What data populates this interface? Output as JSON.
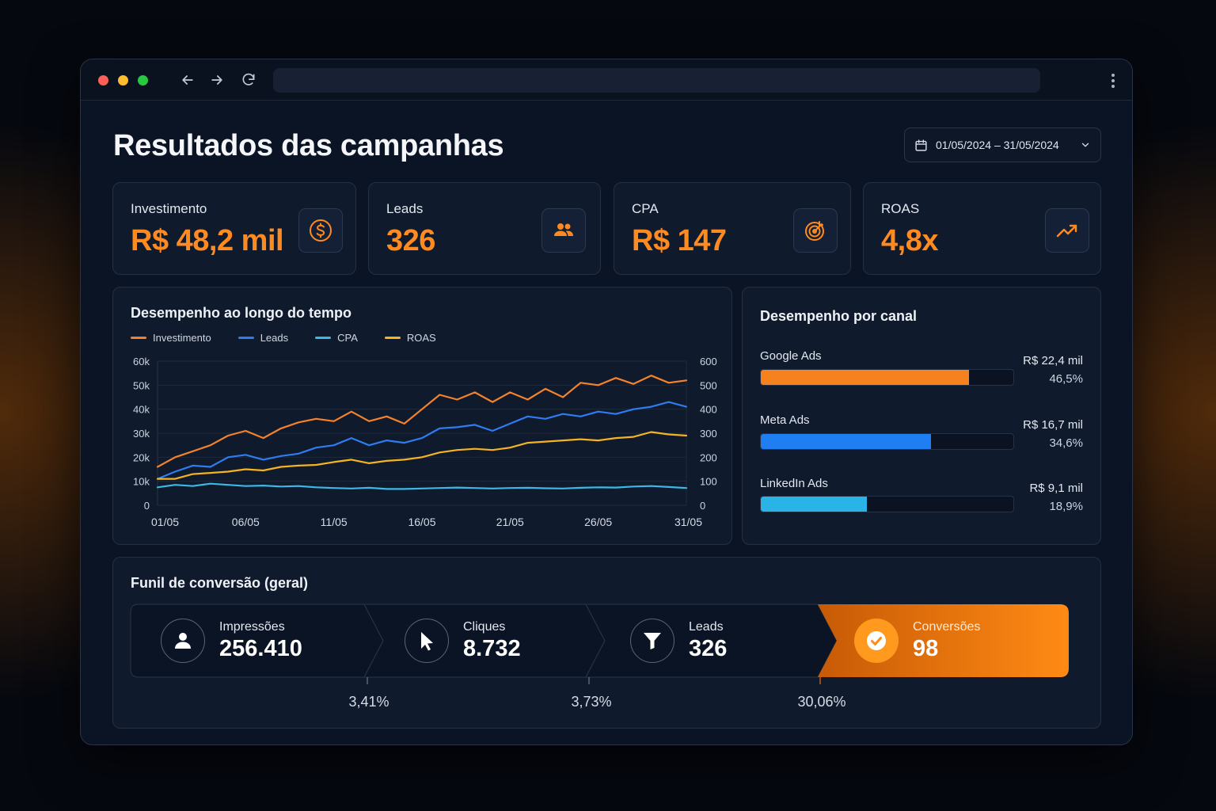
{
  "page": {
    "title": "Resultados das campanhas"
  },
  "date_range": {
    "label": "01/05/2024 – 31/05/2024"
  },
  "kpis": [
    {
      "label": "Investimento",
      "value": "R$ 48,2 mil",
      "icon": "dollar-circle-icon"
    },
    {
      "label": "Leads",
      "value": "326",
      "icon": "users-icon"
    },
    {
      "label": "CPA",
      "value": "R$ 147",
      "icon": "target-icon"
    },
    {
      "label": "ROAS",
      "value": "4,8x",
      "icon": "trending-up-icon"
    }
  ],
  "performance": {
    "title": "Desempenho ao longo do tempo",
    "legend": [
      "Investimento",
      "Leads",
      "CPA",
      "ROAS"
    ]
  },
  "chart_data": {
    "type": "line",
    "title": "Desempenho ao longo do tempo",
    "x": [
      "01/05",
      "02/05",
      "03/05",
      "04/05",
      "05/05",
      "06/05",
      "07/05",
      "08/05",
      "09/05",
      "10/05",
      "11/05",
      "12/05",
      "13/05",
      "14/05",
      "15/05",
      "16/05",
      "17/05",
      "18/05",
      "19/05",
      "20/05",
      "21/05",
      "22/05",
      "23/05",
      "24/05",
      "25/05",
      "26/05",
      "27/05",
      "28/05",
      "29/05",
      "30/05",
      "31/05"
    ],
    "x_ticks": [
      "01/05",
      "06/05",
      "11/05",
      "16/05",
      "21/05",
      "26/05",
      "31/05"
    ],
    "y_left_ticks": [
      "0",
      "10k",
      "20k",
      "30k",
      "40k",
      "50k",
      "60k"
    ],
    "y_right_ticks": [
      "0",
      "100",
      "200",
      "300",
      "400",
      "500",
      "600"
    ],
    "ylim_left": [
      0,
      60000
    ],
    "ylim_right": [
      0,
      600
    ],
    "grid": true,
    "legend_position": "top-left",
    "series": [
      {
        "name": "Investimento",
        "color": "#f5822a",
        "axis": "left",
        "values": [
          16000,
          20000,
          22500,
          25000,
          29000,
          31000,
          28000,
          32000,
          34500,
          36000,
          35000,
          39000,
          35000,
          37000,
          34000,
          40000,
          46000,
          44000,
          47000,
          43000,
          47000,
          44000,
          48500,
          45000,
          51000,
          50000,
          53000,
          50500,
          54000,
          51000,
          52000
        ]
      },
      {
        "name": "Leads",
        "color": "#2f7bf0",
        "axis": "left",
        "values": [
          11000,
          14000,
          16500,
          16000,
          20000,
          21000,
          19000,
          20500,
          21500,
          24000,
          25000,
          28000,
          25000,
          27000,
          26000,
          28000,
          32000,
          32500,
          33500,
          31000,
          34000,
          37000,
          36000,
          38000,
          37000,
          39000,
          38000,
          40000,
          41000,
          43000,
          41000
        ]
      },
      {
        "name": "CPA",
        "color": "#3db8e4",
        "axis": "right",
        "values": [
          75,
          85,
          80,
          90,
          85,
          80,
          82,
          78,
          80,
          75,
          72,
          70,
          73,
          68,
          68,
          70,
          72,
          74,
          72,
          70,
          72,
          73,
          71,
          70,
          73,
          75,
          74,
          78,
          80,
          76,
          72
        ]
      },
      {
        "name": "ROAS",
        "color": "#f5b321",
        "axis": "right",
        "values": [
          110,
          110,
          130,
          135,
          140,
          150,
          145,
          160,
          165,
          168,
          180,
          190,
          175,
          185,
          190,
          200,
          220,
          230,
          235,
          230,
          240,
          260,
          265,
          270,
          275,
          270,
          280,
          285,
          305,
          295,
          290
        ]
      }
    ]
  },
  "channels": {
    "title": "Desempenho por canal",
    "items": [
      {
        "name": "Google Ads",
        "value": "R$ 22,4 mil",
        "pct": "46,5%",
        "share": 0.825,
        "color": "#f5821f"
      },
      {
        "name": "Meta Ads",
        "value": "R$ 16,7 mil",
        "pct": "34,6%",
        "share": 0.675,
        "color": "#1f7ef2"
      },
      {
        "name": "LinkedIn Ads",
        "value": "R$ 9,1 mil",
        "pct": "18,9%",
        "share": 0.42,
        "color": "#2ab3e6"
      }
    ]
  },
  "funnel": {
    "title": "Funil de conversão (geral)",
    "steps": [
      {
        "label": "Impressões",
        "value": "256.410",
        "icon": "user-icon"
      },
      {
        "label": "Cliques",
        "value": "8.732",
        "icon": "cursor-icon"
      },
      {
        "label": "Leads",
        "value": "326",
        "icon": "filter-icon"
      },
      {
        "label": "Conversões",
        "value": "98",
        "icon": "check-circle-icon"
      }
    ],
    "rates": [
      "3,41%",
      "3,73%",
      "30,06%"
    ]
  },
  "colors": {
    "accent": "#ff8a1f",
    "background": "#0b1424",
    "card": "#0f1a2c"
  }
}
